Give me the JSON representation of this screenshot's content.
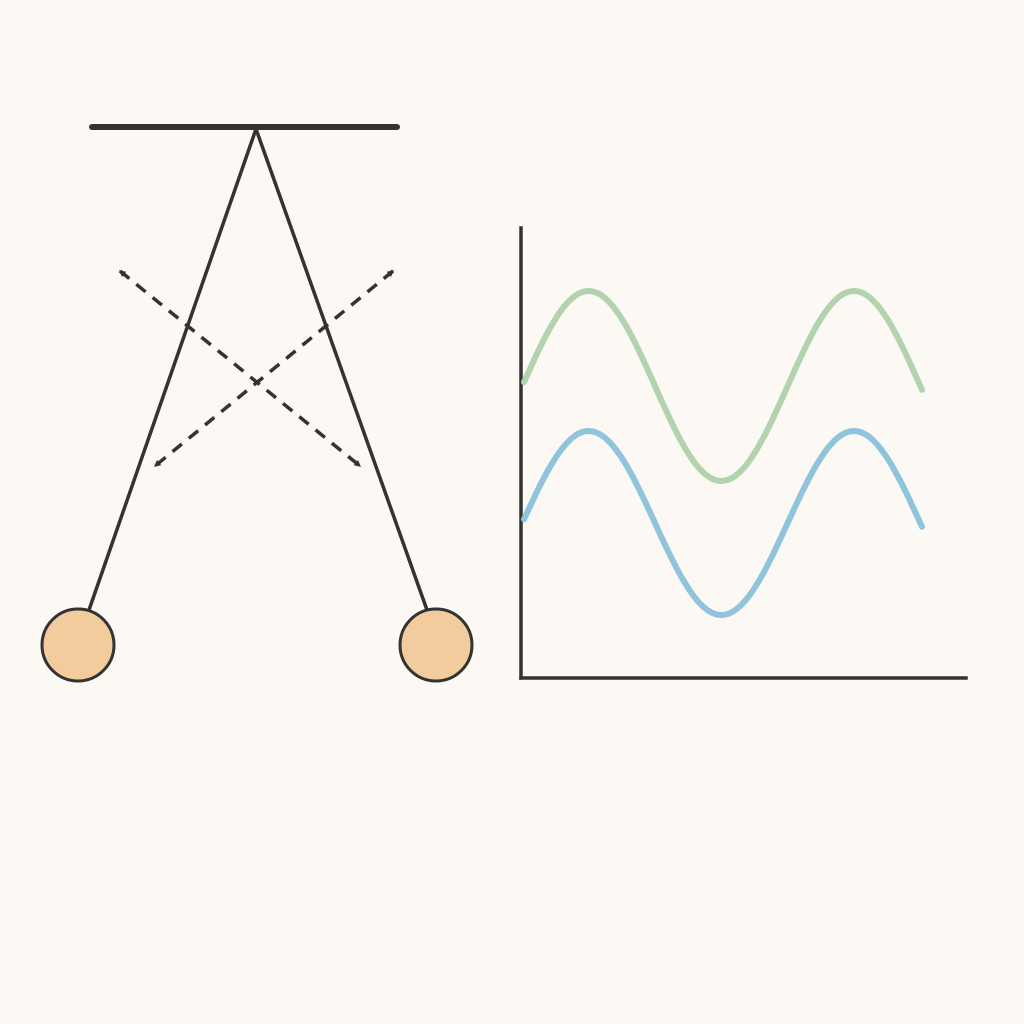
{
  "colors": {
    "background": "#fcf8f3",
    "ink": "#333333",
    "bob_fill": "#f2cc9c",
    "upper_wave": "#b2d3ad",
    "lower_wave": "#8fc4dc"
  },
  "diagram": {
    "support_icon": "horizontal-support-bar",
    "pendulum_count": 2,
    "swing_arrow_icons": [
      "dashed-double-arrow",
      "dashed-double-arrow"
    ],
    "graph": {
      "waves": [
        {
          "color": "#b2d3ad",
          "shape": "sine",
          "cycles": 1.5
        },
        {
          "color": "#8fc4dc",
          "shape": "sine",
          "cycles": 1.5
        }
      ]
    }
  }
}
